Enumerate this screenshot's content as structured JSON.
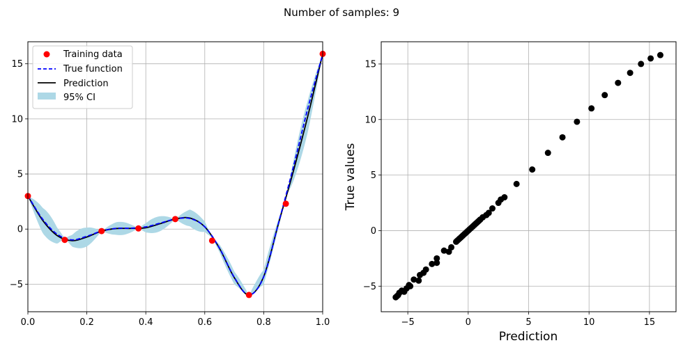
{
  "suptitle": "Number of samples: 9",
  "chart_data": [
    {
      "type": "line",
      "title": "",
      "xlabel": "",
      "ylabel": "",
      "xlim": [
        0,
        1
      ],
      "ylim": [
        -7.5,
        17
      ],
      "xticks": [
        0.0,
        0.2,
        0.4,
        0.6,
        0.8,
        1.0
      ],
      "xtick_labels": [
        "0.0",
        "0.2",
        "0.4",
        "0.6",
        "0.8",
        "1.0"
      ],
      "yticks": [
        -5,
        0,
        5,
        10,
        15
      ],
      "ytick_labels": [
        "−5",
        "0",
        "5",
        "10",
        "15"
      ],
      "grid": true,
      "legend_position": "top-left",
      "legend": [
        "Training data",
        "True function",
        "Prediction",
        "95% CI"
      ],
      "colors": {
        "training": "#ff0000",
        "true": "#0000ff",
        "prediction": "#000000",
        "ci": "#add8e6"
      },
      "training_data": {
        "x": [
          0.0,
          0.125,
          0.25,
          0.375,
          0.5,
          0.625,
          0.75,
          0.875,
          1.0
        ],
        "y": [
          3.0,
          -0.98,
          -0.18,
          0.06,
          0.91,
          -1.05,
          -5.98,
          2.3,
          15.9
        ]
      },
      "true_function": {
        "x": [
          0.0,
          0.05,
          0.1,
          0.15,
          0.2,
          0.25,
          0.3,
          0.35,
          0.4,
          0.45,
          0.5,
          0.55,
          0.6,
          0.65,
          0.7,
          0.75,
          0.8,
          0.85,
          0.9,
          0.95,
          1.0
        ],
        "y": [
          3.03,
          0.9,
          -0.48,
          -0.98,
          -0.65,
          -0.18,
          0.07,
          0.08,
          0.2,
          0.55,
          0.91,
          0.96,
          0.21,
          -1.73,
          -4.37,
          -5.98,
          -4.32,
          0.53,
          5.58,
          11.0,
          15.86
        ]
      },
      "prediction": {
        "x": [
          0.0,
          0.05,
          0.1,
          0.15,
          0.2,
          0.25,
          0.3,
          0.35,
          0.4,
          0.45,
          0.5,
          0.55,
          0.6,
          0.65,
          0.7,
          0.75,
          0.8,
          0.85,
          0.9,
          0.95,
          1.0
        ],
        "y": [
          3.0,
          0.8,
          -0.6,
          -1.05,
          -0.72,
          -0.18,
          0.05,
          0.06,
          0.12,
          0.5,
          0.91,
          1.0,
          0.2,
          -1.75,
          -4.4,
          -5.98,
          -4.3,
          0.5,
          5.2,
          10.3,
          15.9
        ]
      },
      "ci_halfwidth": {
        "x": [
          0.0,
          0.0625,
          0.125,
          0.1875,
          0.25,
          0.3125,
          0.375,
          0.4375,
          0.5,
          0.5625,
          0.625,
          0.6875,
          0.75,
          0.8125,
          0.875,
          0.9375,
          1.0
        ],
        "w": [
          0.0,
          1.2,
          0.0,
          0.9,
          0.0,
          0.6,
          0.0,
          0.7,
          0.0,
          0.8,
          0.0,
          0.6,
          0.0,
          0.7,
          0.0,
          1.5,
          0.0
        ]
      }
    },
    {
      "type": "scatter",
      "title": "",
      "xlabel": "Prediction",
      "ylabel": "True values",
      "xlim": [
        -7.2,
        17.2
      ],
      "ylim": [
        -7.3,
        17.0
      ],
      "xticks": [
        -5,
        0,
        5,
        10,
        15
      ],
      "xtick_labels": [
        "−5",
        "0",
        "5",
        "10",
        "15"
      ],
      "yticks": [
        -5,
        0,
        5,
        10,
        15
      ],
      "ytick_labels": [
        "−5",
        "0",
        "5",
        "10",
        "15"
      ],
      "grid": true,
      "color": "#000000",
      "x": [
        15.9,
        15.1,
        14.3,
        13.4,
        12.4,
        11.3,
        10.2,
        9.0,
        7.8,
        6.6,
        5.3,
        4.0,
        3.0,
        2.7,
        2.5,
        2.0,
        1.7,
        1.5,
        1.2,
        1.0,
        0.9,
        0.8,
        0.7,
        0.6,
        0.5,
        0.4,
        0.3,
        0.2,
        0.1,
        0.0,
        -0.1,
        -0.2,
        -0.3,
        -0.4,
        -0.5,
        -0.6,
        -0.7,
        -0.8,
        -0.9,
        -1.0,
        -1.4,
        -1.6,
        -2.0,
        -2.6,
        -2.6,
        -3.0,
        -3.5,
        -3.7,
        -4.0,
        -4.1,
        -4.5,
        -4.8,
        -4.9,
        -5.1,
        -5.3,
        -5.5,
        -5.7,
        -5.8,
        -5.9,
        -6.0
      ],
      "y": [
        15.8,
        15.5,
        15.0,
        14.2,
        13.3,
        12.2,
        11.0,
        9.8,
        8.4,
        7.0,
        5.5,
        4.2,
        3.0,
        2.8,
        2.5,
        2.0,
        1.6,
        1.4,
        1.2,
        1.0,
        0.9,
        0.8,
        0.7,
        0.6,
        0.5,
        0.4,
        0.3,
        0.2,
        0.1,
        0.0,
        -0.1,
        -0.2,
        -0.3,
        -0.4,
        -0.5,
        -0.6,
        -0.7,
        -0.8,
        -0.9,
        -1.0,
        -1.5,
        -1.9,
        -1.8,
        -2.5,
        -2.9,
        -3.0,
        -3.5,
        -3.8,
        -4.0,
        -4.5,
        -4.4,
        -5.0,
        -4.9,
        -5.2,
        -5.5,
        -5.4,
        -5.6,
        -5.8,
        -5.9,
        -6.0
      ]
    }
  ]
}
